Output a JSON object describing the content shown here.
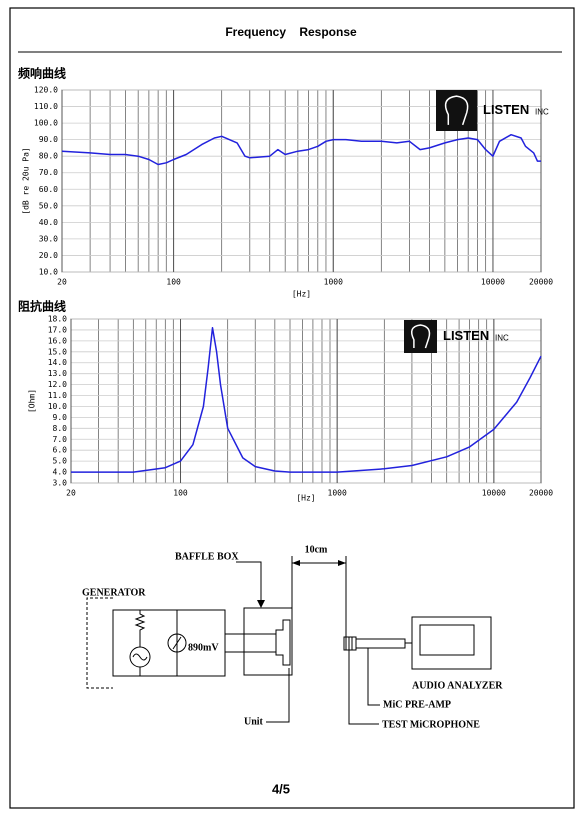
{
  "header": {
    "title": "Frequency    Response"
  },
  "logo": {
    "name": "LISTEN",
    "suffix": "INC"
  },
  "chart_data": [
    {
      "type": "line",
      "title": "频响曲线",
      "xlabel": "[Hz]",
      "ylabel": "[dB re 20u Pa]",
      "log_x": true,
      "grid": true,
      "minor_grid": true,
      "x": [
        20,
        30,
        40,
        50,
        60,
        70,
        80,
        90,
        100,
        120,
        150,
        180,
        200,
        250,
        280,
        300,
        400,
        450,
        500,
        600,
        700,
        800,
        900,
        1000,
        1200,
        1500,
        2000,
        2500,
        3000,
        3500,
        4000,
        5000,
        6000,
        7000,
        8000,
        9000,
        10000,
        11000,
        13000,
        15000,
        16000,
        18000,
        19000,
        20000
      ],
      "series": [
        {
          "color": "#2222dd",
          "values": [
            83,
            82,
            81,
            81,
            80,
            78,
            75,
            76,
            78,
            81,
            87,
            91,
            92,
            88,
            80,
            79,
            80,
            84,
            81,
            83,
            84,
            86,
            89,
            90,
            90,
            89,
            89,
            88,
            89,
            84,
            85,
            88,
            90,
            91,
            90,
            84,
            80,
            89,
            93,
            91,
            86,
            82,
            77,
            77
          ]
        }
      ],
      "xlim": [
        20,
        20000
      ],
      "xticks": [
        20,
        100,
        1000,
        10000,
        20000
      ],
      "ylim": [
        10,
        120
      ],
      "yticks": [
        {
          "value": 10,
          "label": "10.0"
        },
        {
          "value": 20,
          "label": "20.0"
        },
        {
          "value": 30,
          "label": "30.0"
        },
        {
          "value": 40,
          "label": "40.0"
        },
        {
          "value": 50,
          "label": "50.0"
        },
        {
          "value": 60,
          "label": "60.0"
        },
        {
          "value": 70,
          "label": "70.0"
        },
        {
          "value": 80,
          "label": "80.0"
        },
        {
          "value": 90,
          "label": "90.0"
        },
        {
          "value": 100,
          "label": "100.0"
        },
        {
          "value": 110,
          "label": "110.0"
        },
        {
          "value": 120,
          "label": "120.0"
        }
      ]
    },
    {
      "type": "line",
      "title": "阻抗曲线",
      "xlabel": "[Hz]",
      "ylabel": "[Ohm]",
      "log_x": true,
      "grid": true,
      "minor_grid": true,
      "x": [
        20,
        50,
        80,
        100,
        120,
        140,
        150,
        160,
        170,
        180,
        200,
        250,
        300,
        400,
        500,
        1000,
        2000,
        3000,
        5000,
        7000,
        10000,
        14000,
        17000,
        20000
      ],
      "series": [
        {
          "color": "#2222dd",
          "values": [
            4.0,
            4.0,
            4.4,
            5.0,
            6.5,
            10.0,
            13.5,
            17.2,
            15.0,
            12.0,
            8.0,
            5.3,
            4.5,
            4.1,
            4.0,
            4.0,
            4.3,
            4.6,
            5.4,
            6.3,
            7.9,
            10.4,
            12.6,
            14.6
          ]
        }
      ],
      "xlim": [
        20,
        20000
      ],
      "xticks": [
        20,
        100,
        1000,
        10000,
        20000
      ],
      "ylim": [
        3,
        18
      ],
      "yticks": [
        {
          "value": 3,
          "label": "3.0"
        },
        {
          "value": 4,
          "label": "4.0"
        },
        {
          "value": 5,
          "label": "5.0"
        },
        {
          "value": 6,
          "label": "6.0"
        },
        {
          "value": 7,
          "label": "7.0"
        },
        {
          "value": 8,
          "label": "8.0"
        },
        {
          "value": 9,
          "label": "9.0"
        },
        {
          "value": 10,
          "label": "10.0"
        },
        {
          "value": 11,
          "label": "11.0"
        },
        {
          "value": 12,
          "label": "12.0"
        },
        {
          "value": 13,
          "label": "13.0"
        },
        {
          "value": 14,
          "label": "14.0"
        },
        {
          "value": 15,
          "label": "15.0"
        },
        {
          "value": 16,
          "label": "16.0"
        },
        {
          "value": 17,
          "label": "17.0"
        },
        {
          "value": 18,
          "label": "18.0"
        }
      ]
    }
  ],
  "diagram": {
    "baffle_box": "BAFFLE BOX",
    "distance": "10cm",
    "generator": "GENERATOR",
    "voltage": "890mV",
    "unit": "Unit",
    "analyzer": "AUDIO ANALYZER",
    "preamp": "MiC PRE-AMP",
    "microphone": "TEST MiCROPHONE"
  },
  "page_number": "4/5"
}
